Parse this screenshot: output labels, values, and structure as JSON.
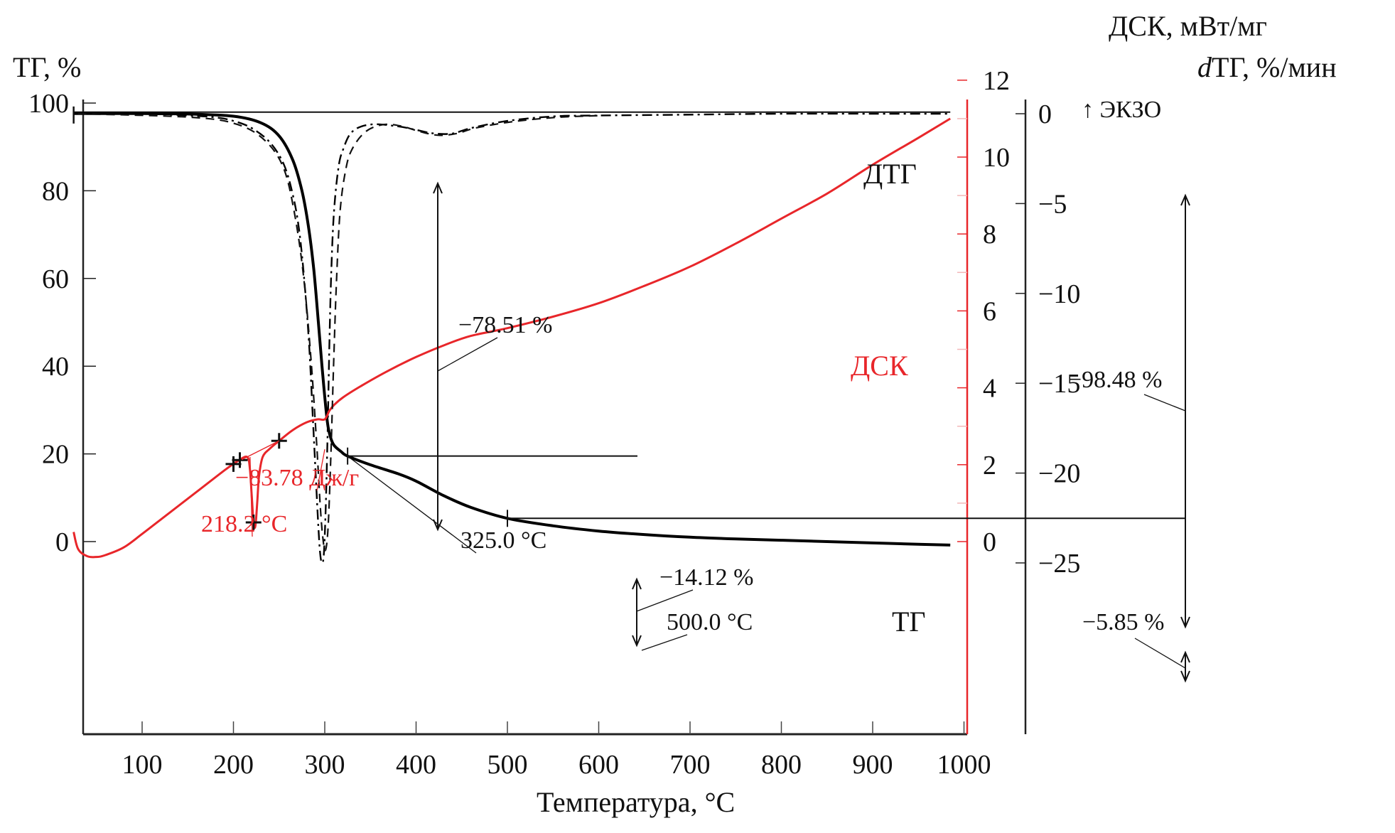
{
  "chart_data": {
    "type": "line",
    "title": "",
    "xlabel": "Температура, °C",
    "xlim": [
      20,
      1005
    ],
    "x_ticks": [
      100,
      200,
      300,
      400,
      500,
      600,
      700,
      800,
      900,
      1000
    ],
    "axes": {
      "left": {
        "label": "ТГ, %",
        "ylim": [
          -10,
          105
        ],
        "ticks": [
          0,
          20,
          40,
          60,
          80,
          100
        ]
      },
      "right_dsc": {
        "label": "ДСК, мВт/мг",
        "ylim": [
          -1.2,
          12
        ],
        "ticks": [
          0,
          2,
          4,
          6,
          8,
          10,
          12
        ],
        "color": "#e8262a"
      },
      "right_dtg": {
        "label_prefix": "d",
        "label": "ТГ, %/мин",
        "ylim": [
          -26.5,
          1.8
        ],
        "ticks": [
          0,
          -5,
          -10,
          -15,
          -20,
          -25
        ]
      }
    },
    "series": [
      {
        "name": "ТГ",
        "axis": "left",
        "style": "solid-thick",
        "color": "#000000",
        "x": [
          25,
          100,
          150,
          200,
          230,
          250,
          265,
          275,
          282,
          288,
          293,
          297,
          300,
          303,
          306,
          310,
          318,
          325,
          350,
          380,
          400,
          430,
          460,
          500,
          550,
          600,
          650,
          700,
          750,
          800,
          850,
          900,
          950,
          985
        ],
        "values": [
          97.6,
          97.6,
          97.5,
          97.0,
          95.5,
          92.5,
          87,
          80,
          72,
          62,
          50,
          40,
          33,
          27,
          24,
          22,
          20.5,
          19.5,
          17.5,
          15.5,
          13.8,
          10.5,
          7.8,
          5.3,
          3.6,
          2.4,
          1.6,
          1.0,
          0.6,
          0.3,
          0.0,
          -0.3,
          -0.6,
          -0.8
        ]
      },
      {
        "name": "ДТГ",
        "axis": "right_dtg",
        "style": "dash-dot",
        "color": "#000000",
        "x": [
          25,
          100,
          150,
          180,
          200,
          220,
          240,
          255,
          265,
          272,
          278,
          283,
          287,
          290,
          293,
          295,
          297,
          299,
          301,
          303,
          305,
          307,
          310,
          315,
          320,
          330,
          350,
          380,
          400,
          420,
          440,
          460,
          500,
          550,
          600,
          700,
          800,
          900,
          985
        ],
        "values": [
          0,
          0,
          -0.1,
          -0.2,
          -0.4,
          -0.8,
          -1.6,
          -2.8,
          -4.5,
          -6.5,
          -9.5,
          -13,
          -17,
          -20,
          -23,
          -24.5,
          -25,
          -24.5,
          -22,
          -18,
          -13,
          -9,
          -5.5,
          -3.0,
          -2.0,
          -1.0,
          -0.6,
          -0.7,
          -0.9,
          -1.1,
          -1.1,
          -0.8,
          -0.4,
          -0.15,
          -0.1,
          -0.05,
          0,
          0,
          0
        ]
      },
      {
        "name": "ДСК",
        "axis": "right_dsc",
        "style": "solid",
        "color": "#e8262a",
        "x": [
          25,
          30,
          40,
          50,
          60,
          80,
          100,
          130,
          160,
          190,
          205,
          215,
          218,
          220,
          222,
          224,
          226,
          228,
          232,
          240,
          250,
          265,
          280,
          292,
          300,
          305,
          310,
          320,
          340,
          370,
          400,
          430,
          460,
          500,
          550,
          600,
          650,
          700,
          750,
          800,
          850,
          900,
          950,
          985
        ],
        "values": [
          0.25,
          -0.2,
          -0.38,
          -0.4,
          -0.35,
          -0.15,
          0.2,
          0.75,
          1.3,
          1.85,
          2.1,
          2.2,
          1.9,
          1.2,
          0.5,
          0.4,
          1.0,
          1.7,
          2.2,
          2.42,
          2.62,
          2.9,
          3.1,
          3.18,
          3.18,
          3.4,
          3.55,
          3.75,
          4.05,
          4.45,
          4.8,
          5.1,
          5.35,
          5.55,
          5.85,
          6.2,
          6.65,
          7.15,
          7.75,
          8.4,
          9.05,
          9.8,
          10.5,
          11.0
        ]
      }
    ],
    "curve_labels": [
      {
        "text": "ДТГ",
        "x": 790,
        "axis": "left",
        "y": 91
      },
      {
        "text": "ДСК",
        "x": 790,
        "axis": "left",
        "y": 55,
        "color": "#e8262a"
      },
      {
        "text": "ТГ",
        "x": 795,
        "axis": "left",
        "y": 9.5
      }
    ],
    "annotations": [
      {
        "text": "↑ ЭКЗО",
        "kind": "exo-direction"
      },
      {
        "text": "−78.51 %",
        "kind": "mass-loss",
        "from_x": 325
      },
      {
        "text": "325.0 °C",
        "kind": "temperature-mark",
        "x": 325,
        "tg": 19.5
      },
      {
        "text": "−14.12 %",
        "kind": "mass-loss",
        "from_x": 500
      },
      {
        "text": "500.0 °C",
        "kind": "temperature-mark",
        "x": 500,
        "tg": 5.3
      },
      {
        "text": "−98.48 %",
        "kind": "total-mass-loss",
        "from_x": 985
      },
      {
        "text": "−5.85 %",
        "kind": "mass-loss",
        "from_x": 985
      },
      {
        "text": "−83.78 Дж/г",
        "kind": "dsc-enthalpy",
        "color": "#e8262a"
      },
      {
        "text": "218.2 °C",
        "kind": "dsc-onset",
        "x": 218.2,
        "color": "#e8262a"
      }
    ],
    "dsc_markers_x": [
      200,
      207,
      222,
      250
    ],
    "legend": "none",
    "grid": false
  }
}
